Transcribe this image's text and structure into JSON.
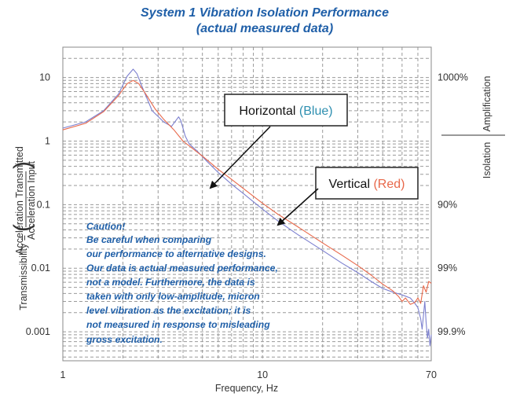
{
  "chart_data": {
    "type": "line",
    "title": "System 1 Vibration Isolation Performance",
    "subtitle": "(actual measured data)",
    "xlabel": "Frequency, Hz",
    "ylabel": "Transmissibility = (Acceleration Transmitted / Acceleration Input)",
    "ylabel_parts": {
      "prefix": "Transmissibility = ",
      "numerator": "Acceleration Transmitted",
      "denominator": "Acceleration Input"
    },
    "xscale": "log",
    "yscale": "log",
    "xlim": [
      1,
      70
    ],
    "ylim": [
      0.00035,
      30
    ],
    "grid": true,
    "x_ticks": [
      {
        "value": 1,
        "label": "1"
      },
      {
        "value": 10,
        "label": "10"
      },
      {
        "value": 70,
        "label": "70"
      }
    ],
    "y_ticks": [
      {
        "value": 10,
        "label": "10"
      },
      {
        "value": 1,
        "label": "1"
      },
      {
        "value": 0.1,
        "label": "0.1"
      },
      {
        "value": 0.01,
        "label": "0.01"
      },
      {
        "value": 0.001,
        "label": "0.001"
      }
    ],
    "right_axis": {
      "label_top": "Amplification",
      "label_bottom": "Isolation",
      "ticks": [
        {
          "value": 10,
          "label": "1000%"
        },
        {
          "value": 0.1,
          "label": "90%"
        },
        {
          "value": 0.01,
          "label": "99%"
        },
        {
          "value": 0.001,
          "label": "99.9%"
        }
      ]
    },
    "series": [
      {
        "name": "Horizontal",
        "color": "#7b7fcf",
        "x": [
          1,
          1.3,
          1.6,
          1.9,
          2.1,
          2.25,
          2.35,
          2.5,
          2.8,
          3.2,
          3.5,
          3.8,
          3.9,
          4.1,
          4.3,
          4.7,
          5.2,
          6,
          7,
          8,
          10,
          12,
          15,
          20,
          25,
          30,
          35,
          40,
          45,
          50,
          55,
          58,
          60,
          62,
          63,
          64,
          65,
          66,
          67,
          68,
          69,
          70
        ],
        "y": [
          1.6,
          2.0,
          3.0,
          5.5,
          10.5,
          13.5,
          11.5,
          7.0,
          3.0,
          2.0,
          1.7,
          2.4,
          2.1,
          1.2,
          0.9,
          0.7,
          0.5,
          0.32,
          0.21,
          0.15,
          0.085,
          0.055,
          0.034,
          0.019,
          0.012,
          0.0085,
          0.0062,
          0.0048,
          0.0042,
          0.0038,
          0.0034,
          0.0028,
          0.0024,
          0.0016,
          0.0011,
          0.0018,
          0.003,
          0.0014,
          0.0008,
          0.0011,
          0.0006,
          0.0009
        ]
      },
      {
        "name": "Vertical",
        "color": "#e8684a",
        "x": [
          1,
          1.3,
          1.6,
          1.9,
          2.1,
          2.25,
          2.4,
          2.6,
          2.9,
          3.2,
          3.6,
          4,
          4.5,
          5,
          6,
          7,
          8,
          10,
          12,
          15,
          20,
          25,
          30,
          35,
          40,
          45,
          48,
          50,
          52,
          55,
          58,
          60,
          62,
          64,
          66,
          68,
          70
        ],
        "y": [
          1.5,
          1.9,
          2.9,
          5.2,
          8.0,
          9.0,
          8.0,
          5.5,
          3.2,
          2.2,
          1.5,
          1.0,
          0.75,
          0.58,
          0.36,
          0.25,
          0.18,
          0.105,
          0.07,
          0.045,
          0.025,
          0.016,
          0.011,
          0.0078,
          0.0056,
          0.0044,
          0.0036,
          0.003,
          0.0034,
          0.0027,
          0.0029,
          0.0034,
          0.0028,
          0.0053,
          0.0042,
          0.0062,
          0.0058
        ]
      }
    ],
    "annotations": [
      {
        "id": "horizontal",
        "label": "Horizontal",
        "colored_label": "(Blue)",
        "color": "#2e8fb0",
        "arrow_to": {
          "x": 5.4,
          "y": 0.13
        }
      },
      {
        "id": "vertical",
        "label": "Vertical",
        "colored_label": "(Red)",
        "color": "#e8684a",
        "arrow_to": {
          "x": 11.5,
          "y": 0.035
        }
      }
    ],
    "caution_note": [
      "Caution!",
      "Be careful when comparing",
      "our performance to alternative designs.",
      "Our data is actual measured performance,",
      "not a model. Furthermore, the data is",
      "taken with only low-amplitude, micron",
      "level vibration as the excitation; it is",
      "not measured in response to misleading",
      "gross excitation."
    ]
  }
}
